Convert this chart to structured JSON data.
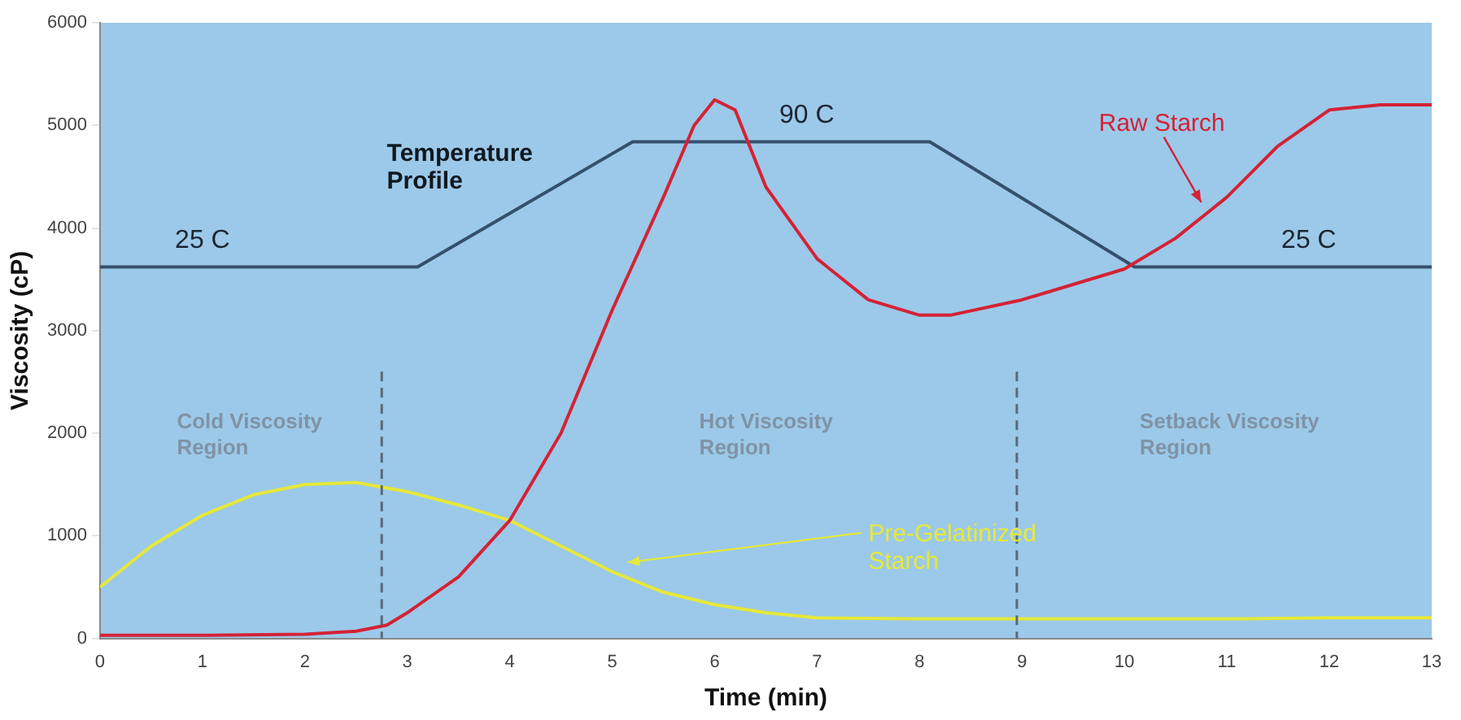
{
  "chart_data": {
    "type": "line",
    "xlabel": "Time (min)",
    "ylabel": "Viscosity (cP)",
    "xlim": [
      0,
      13
    ],
    "xticks": [
      0,
      1,
      2,
      3,
      4,
      5,
      6,
      7,
      8,
      9,
      10,
      11,
      12,
      13
    ],
    "ylim": [
      0,
      6000
    ],
    "yticks": [
      0,
      1000,
      2000,
      3000,
      4000,
      5000,
      6000
    ],
    "grid": false,
    "legend": false,
    "marker": "none",
    "line_style": "solid",
    "series": [
      {
        "name": "Raw Starch",
        "color": "#d42235",
        "x": [
          0,
          1,
          2,
          2.5,
          2.8,
          3,
          3.5,
          4,
          4.5,
          5,
          5.5,
          5.8,
          6,
          6.2,
          6.5,
          7,
          7.5,
          8,
          8.3,
          9,
          9.5,
          10,
          10.5,
          11,
          11.5,
          12,
          12.5,
          13
        ],
        "values": [
          30,
          30,
          40,
          70,
          130,
          250,
          600,
          1150,
          2000,
          3200,
          4300,
          5000,
          5250,
          5150,
          4400,
          3700,
          3300,
          3150,
          3150,
          3300,
          3450,
          3600,
          3900,
          4300,
          4800,
          5150,
          5200,
          5200
        ]
      },
      {
        "name": "Pre-Gelatinized Starch",
        "color": "#e6e83a",
        "x": [
          0,
          0.5,
          1,
          1.5,
          2,
          2.5,
          3,
          3.5,
          4,
          4.5,
          5,
          5.5,
          6,
          6.5,
          7,
          8,
          9,
          10,
          11,
          12,
          13
        ],
        "values": [
          500,
          900,
          1200,
          1400,
          1500,
          1520,
          1430,
          1300,
          1150,
          900,
          650,
          450,
          330,
          250,
          200,
          190,
          190,
          190,
          190,
          200,
          200
        ]
      },
      {
        "name": "Temperature Profile",
        "color": "#34506c",
        "x": [
          0,
          3.1,
          5.2,
          8.1,
          10.1,
          13
        ],
        "values": [
          3620,
          3620,
          4840,
          4840,
          3620,
          3620
        ]
      }
    ],
    "ref_lines": [
      {
        "axis": "x",
        "value": 2.75,
        "color": "#5a6878",
        "line_style": "dashed"
      },
      {
        "axis": "x",
        "value": 8.95,
        "color": "#5a6878",
        "line_style": "dashed"
      }
    ],
    "annotations": [
      {
        "text": "25 C",
        "x": 1,
        "y": 3620
      },
      {
        "text": "90 C",
        "x": 6.9,
        "y": 4840
      },
      {
        "text": "25 C",
        "x": 11.8,
        "y": 3620
      },
      "Cold Viscosity Region",
      "Hot Viscosity Region",
      "Setback Viscosity Region"
    ]
  }
}
